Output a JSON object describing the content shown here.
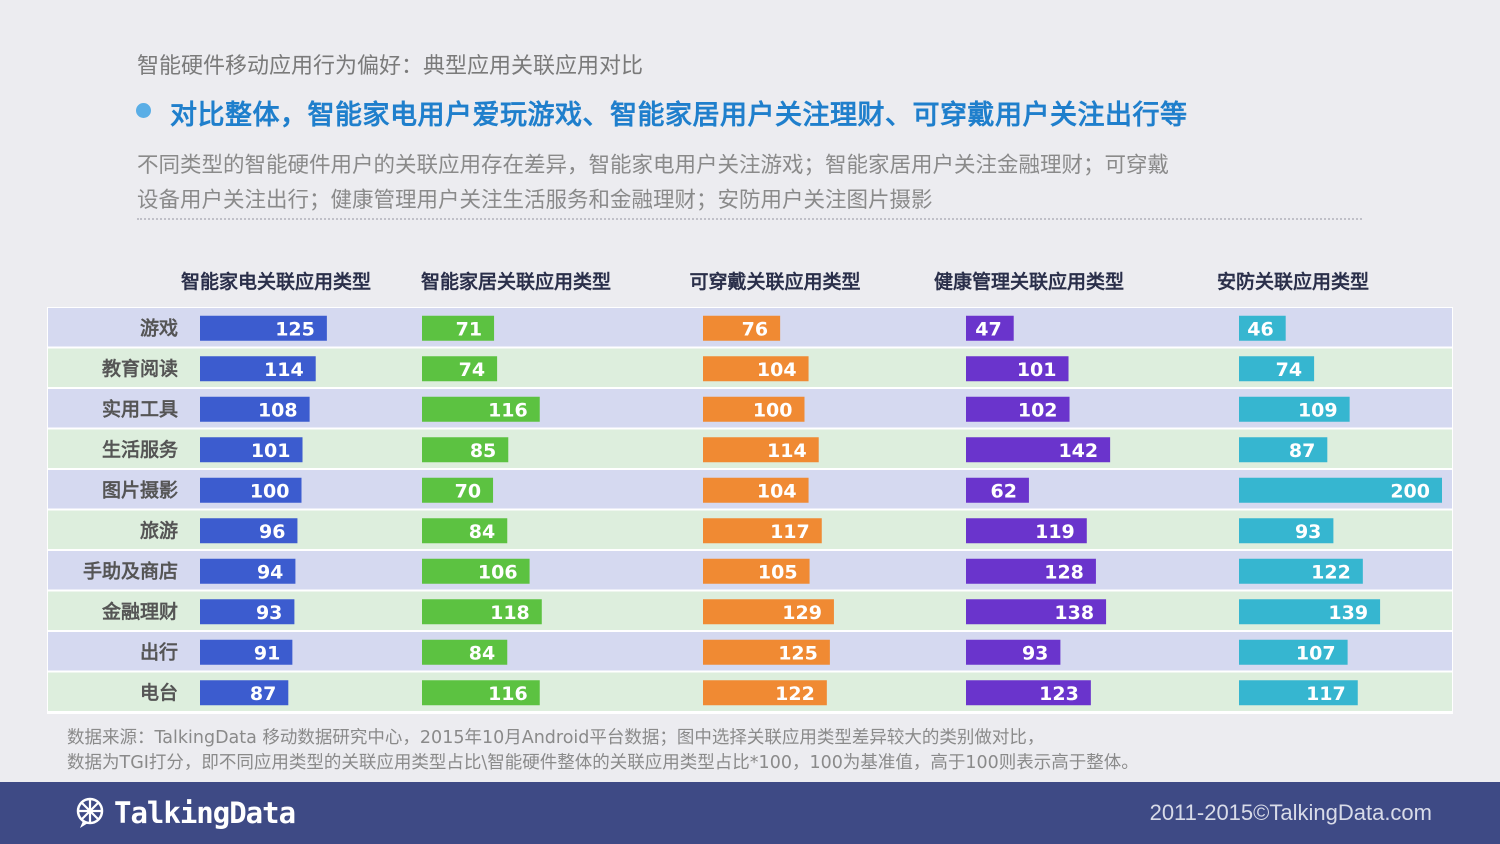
{
  "header": {
    "section_title": "智能硬件移动应用行为偏好：典型应用关联应用对比",
    "headline": "对比整体，智能家电用户爱玩游戏、智能家居用户关注理财、可穿戴用户关注出行等",
    "desc_line1": "不同类型的智能硬件用户的关联应用存在差异，智能家电用户关注游戏；智能家居用户关注金融理财；可穿戴",
    "desc_line2": "设备用户关注出行；健康管理用户关注生活服务和金融理财；安防用户关注图片摄影"
  },
  "source": {
    "line1": "数据来源：TalkingData 移动数据研究中心，2015年10月Android平台数据；图中选择关联应用类型差异较大的类别做对比，",
    "line2": "数据为TGI打分，即不同应用类型的关联应用类型占比\\智能硬件整体的关联应用类型占比*100，100为基准值，高于100则表示高于整体。"
  },
  "footer": {
    "logo_text": "TalkingData",
    "copyright": "2011-2015©TalkingData.com"
  },
  "chart_data": {
    "type": "bar",
    "orientation": "horizontal",
    "categories": [
      "游戏",
      "教育阅读",
      "实用工具",
      "生活服务",
      "图片摄影",
      "旅游",
      "手助及商店",
      "金融理财",
      "出行",
      "电台"
    ],
    "series": [
      {
        "name": "智能家电关联应用类型",
        "color": "#3c5ccf",
        "values": [
          125,
          114,
          108,
          101,
          100,
          96,
          94,
          93,
          91,
          87
        ]
      },
      {
        "name": "智能家居关联应用类型",
        "color": "#5cc241",
        "values": [
          71,
          74,
          116,
          85,
          70,
          84,
          106,
          118,
          84,
          116
        ]
      },
      {
        "name": "可穿戴关联应用类型",
        "color": "#f08a33",
        "values": [
          76,
          104,
          100,
          114,
          104,
          117,
          105,
          129,
          125,
          122
        ]
      },
      {
        "name": "健康管理关联应用类型",
        "color": "#6a34cc",
        "values": [
          47,
          101,
          102,
          142,
          62,
          119,
          128,
          138,
          93,
          123
        ]
      },
      {
        "name": "安防关联应用类型",
        "color": "#36b6d0",
        "values": [
          46,
          74,
          109,
          87,
          200,
          93,
          122,
          139,
          107,
          117
        ]
      }
    ],
    "row_colors": [
      "#d5d9f0",
      "#ddeedd"
    ]
  }
}
